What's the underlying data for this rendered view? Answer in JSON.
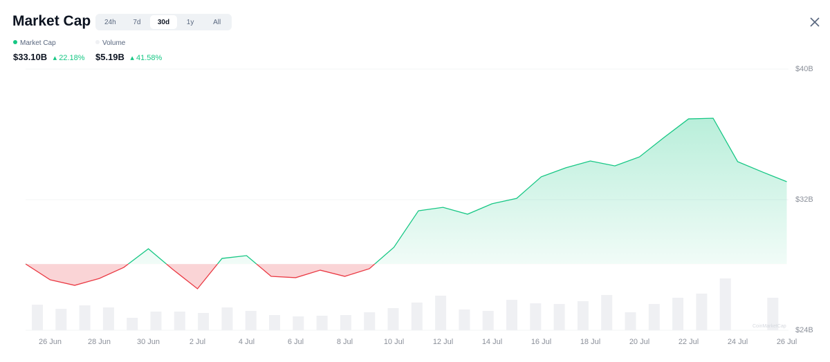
{
  "header": {
    "title": "Market Cap",
    "tabs": [
      "24h",
      "7d",
      "30d",
      "1y",
      "All"
    ],
    "active_tab": 2
  },
  "legend": [
    {
      "value": "$33.10B",
      "change": "22.18%"
    },
    {
      "value": "$5.19B",
      "change": "41.58%"
    }
  ],
  "chart_data": {
    "type": "line",
    "categories": [
      null,
      "26 Jun",
      null,
      "28 Jun",
      null,
      "30 Jun",
      null,
      "2 Jul",
      null,
      "4 Jul",
      null,
      "6 Jul",
      null,
      "8 Jul",
      null,
      "10 Jul",
      null,
      "12 Jul",
      null,
      "14 Jul",
      null,
      "16 Jul",
      null,
      "18 Jul",
      null,
      "20 Jul",
      null,
      "22 Jul",
      null,
      "24 Jul",
      null,
      "26 Jul"
    ],
    "series": [
      {
        "name": "Market Cap",
        "color": "#16c784",
        "down_color": "#ea3943",
        "values": [
          28.06,
          27.09,
          26.75,
          27.17,
          27.85,
          28.99,
          27.72,
          26.54,
          28.4,
          28.57,
          27.3,
          27.22,
          27.68,
          27.3,
          27.77,
          29.08,
          31.32,
          31.53,
          31.11,
          31.75,
          32.08,
          33.4,
          33.95,
          34.37,
          34.07,
          34.62,
          35.81,
          36.95,
          36.99,
          34.33,
          33.7,
          33.1
        ]
      },
      {
        "name": "Volume",
        "type": "bar",
        "color": "#eff0f3",
        "values": [
          4.08,
          3.42,
          3.97,
          3.64,
          1.99,
          2.98,
          2.98,
          2.76,
          3.64,
          3.09,
          2.43,
          2.21,
          2.32,
          2.43,
          2.87,
          3.53,
          4.42,
          5.52,
          3.31,
          3.09,
          4.86,
          4.3,
          4.19,
          4.64,
          5.63,
          2.87,
          4.19,
          5.19,
          5.85,
          8.28,
          null,
          5.19
        ]
      }
    ],
    "ylim": [
      24,
      40
    ],
    "yticks": [
      {
        "value": 24,
        "label": "$24B"
      },
      {
        "value": 32,
        "label": "$32B"
      },
      {
        "value": 40,
        "label": "$40B"
      }
    ],
    "grid": true,
    "watermark": "CoinMarketCap"
  }
}
